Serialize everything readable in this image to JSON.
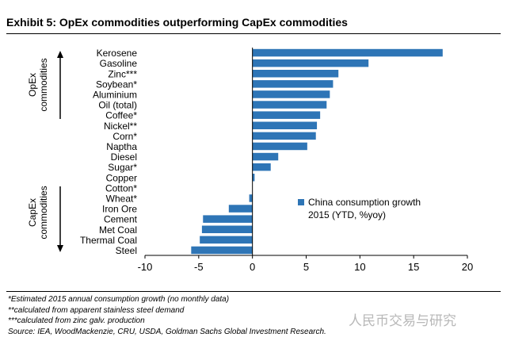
{
  "exhibit_title": "Exhibit 5: OpEx commodities outperforming CapEx commodities",
  "chart_data": {
    "type": "bar",
    "orientation": "horizontal",
    "categories": [
      "Kerosene",
      "Gasoline",
      "Zinc***",
      "Soybean*",
      "Aluminium",
      "Oil (total)",
      "Coffee*",
      "Nickel**",
      "Corn*",
      "Naptha",
      "Diesel",
      "Sugar*",
      "Copper",
      "Cotton*",
      "Wheat*",
      "Iron Ore",
      "Cement",
      "Met Coal",
      "Thermal Coal",
      "Steel"
    ],
    "series": [
      {
        "name": "China consumption growth 2015 (YTD, %yoy)",
        "values": [
          17.7,
          10.8,
          8.0,
          7.5,
          7.2,
          6.9,
          6.3,
          6.0,
          5.9,
          5.1,
          2.4,
          1.7,
          0.2,
          0.0,
          -0.3,
          -2.2,
          -4.6,
          -4.7,
          -4.9,
          -5.7
        ]
      }
    ],
    "xlim": [
      -10,
      20
    ],
    "xticks": [
      "-10",
      "-5",
      "0",
      "5",
      "10",
      "15",
      "20"
    ],
    "legend_lines": [
      "China consumption growth",
      "2015 (YTD, %yoy)"
    ],
    "legend_position": "center-right",
    "group_labels": {
      "opex": [
        "OpEx",
        "commodities"
      ],
      "capex": [
        "CapEx",
        "commodities"
      ]
    },
    "bar_color": "#2e75b6",
    "grid": false
  },
  "footnotes": [
    "*Estimated 2015 annual consumption growth (no monthly data)",
    "**calculated from apparent stainless steel demand",
    "***calculated from zinc galv. production",
    "Source: IEA, WoodMackenzie, CRU, USDA, Goldman Sachs Global Investment Research."
  ],
  "watermark": "人民币交易与研究"
}
